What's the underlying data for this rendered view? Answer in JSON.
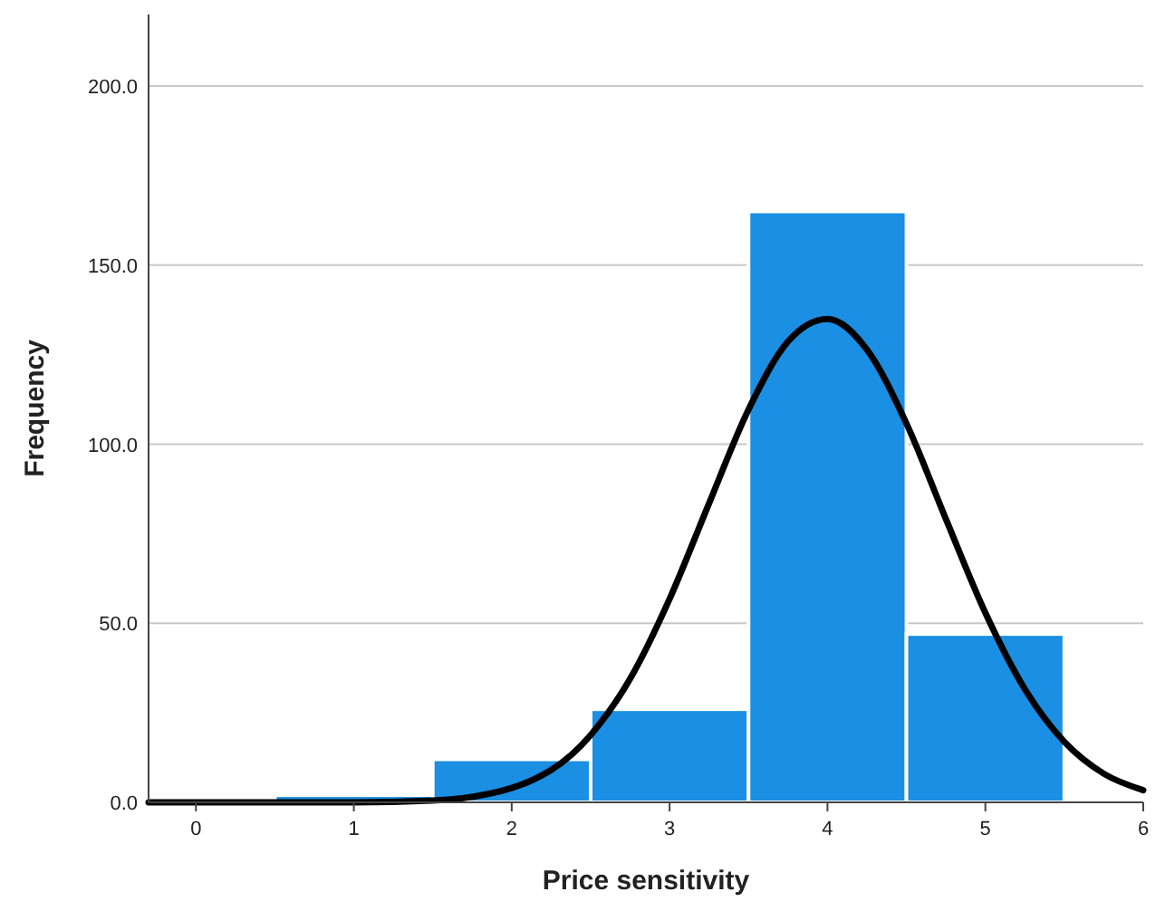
{
  "chart_data": {
    "type": "histogram",
    "xlabel": "Price sensitivity",
    "ylabel": "Frequency",
    "bins": [
      0.5,
      1.5,
      2.5,
      3.5,
      4.5,
      5.5
    ],
    "values": [
      2,
      12,
      26,
      165,
      47
    ],
    "color": "#1a8fe3",
    "series": [
      {
        "type": "line",
        "color": "#000000",
        "x": [
          -0.3,
          0,
          0.5,
          1,
          1.5,
          2,
          2.5,
          2.75,
          3,
          3.25,
          3.5,
          3.75,
          4,
          4.25,
          4.5,
          4.75,
          5,
          5.25,
          5.5,
          5.75,
          6
        ],
        "values": [
          0,
          0,
          0,
          0,
          0.5,
          4,
          18.8,
          34.5,
          56.8,
          83.5,
          109.7,
          128.7,
          135,
          126.4,
          105.8,
          79.1,
          52.9,
          31.6,
          16.9,
          8,
          3.4
        ]
      }
    ],
    "xlim": [
      -0.3,
      6
    ],
    "xticks": [
      0,
      1,
      2,
      3,
      4,
      5,
      6
    ],
    "ylim": [
      0,
      220
    ],
    "yticks": [
      {
        "value": 0,
        "label": "0.0"
      },
      {
        "value": 50,
        "label": "50.0"
      },
      {
        "value": 100,
        "label": "100.0"
      },
      {
        "value": 150,
        "label": "150.0"
      },
      {
        "value": 200,
        "label": "200.0"
      }
    ],
    "grid": "y",
    "marker": "none",
    "line_style": "solid"
  }
}
